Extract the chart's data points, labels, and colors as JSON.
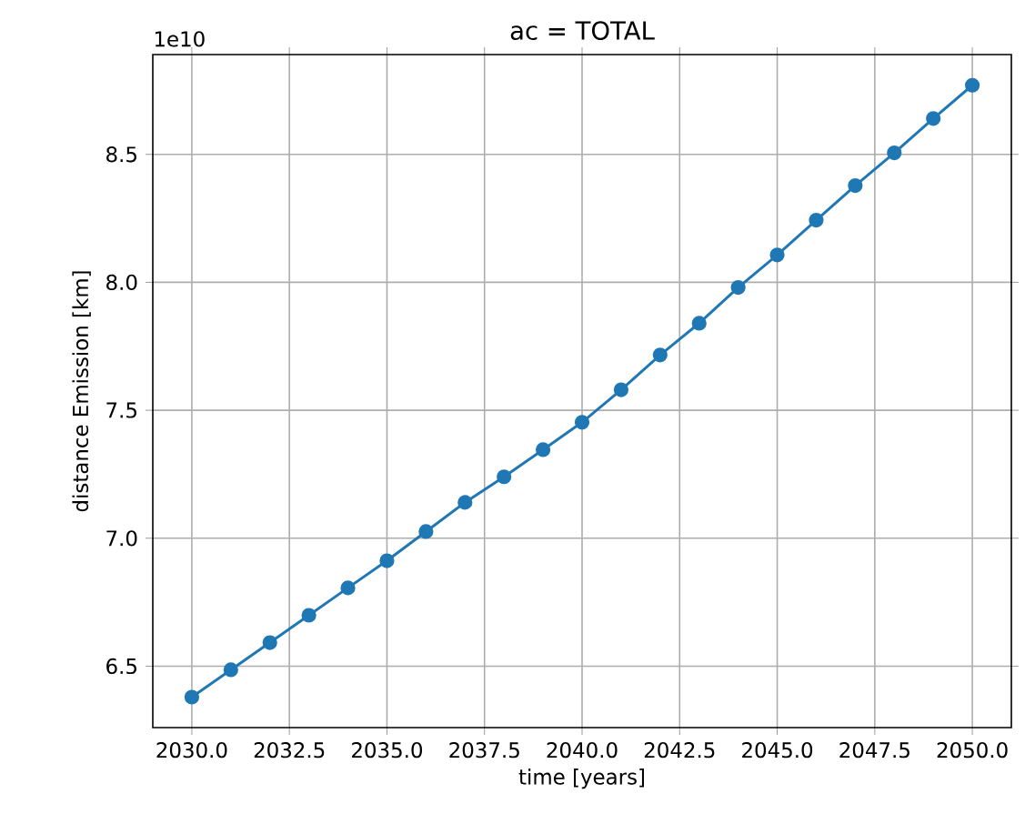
{
  "chart_data": {
    "type": "line",
    "title": "ac = TOTAL",
    "xlabel": "time [years]",
    "ylabel": "distance Emission [km]",
    "annotations": [
      "1e10"
    ],
    "x": [
      2030,
      2031,
      2032,
      2033,
      2034,
      2035,
      2036,
      2037,
      2038,
      2039,
      2040,
      2041,
      2042,
      2043,
      2044,
      2045,
      2046,
      2047,
      2048,
      2049,
      2050
    ],
    "series": [
      {
        "color": "#1f77b4",
        "values": [
          6.379,
          6.486,
          6.592,
          6.699,
          6.806,
          6.912,
          7.026,
          7.14,
          7.24,
          7.346,
          7.453,
          7.58,
          7.716,
          7.84,
          7.98,
          8.107,
          8.243,
          8.378,
          8.506,
          8.64,
          8.77
        ]
      }
    ],
    "xlim": [
      2029,
      2051
    ],
    "ylim": [
      6.26,
      8.89
    ],
    "xticks": [
      {
        "value": 2030,
        "label": "2030.0"
      },
      {
        "value": 2032.5,
        "label": "2032.5"
      },
      {
        "value": 2035,
        "label": "2035.0"
      },
      {
        "value": 2037.5,
        "label": "2037.5"
      },
      {
        "value": 2040,
        "label": "2040.0"
      },
      {
        "value": 2042.5,
        "label": "2042.5"
      },
      {
        "value": 2045,
        "label": "2045.0"
      },
      {
        "value": 2047.5,
        "label": "2047.5"
      },
      {
        "value": 2050,
        "label": "2050.0"
      }
    ],
    "yticks": [
      {
        "value": 6.5,
        "label": "6.5"
      },
      {
        "value": 7.0,
        "label": "7.0"
      },
      {
        "value": 7.5,
        "label": "7.5"
      },
      {
        "value": 8.0,
        "label": "8.0"
      },
      {
        "value": 8.5,
        "label": "8.5"
      }
    ],
    "grid": true,
    "marker": "circle",
    "line_style": "solid"
  }
}
